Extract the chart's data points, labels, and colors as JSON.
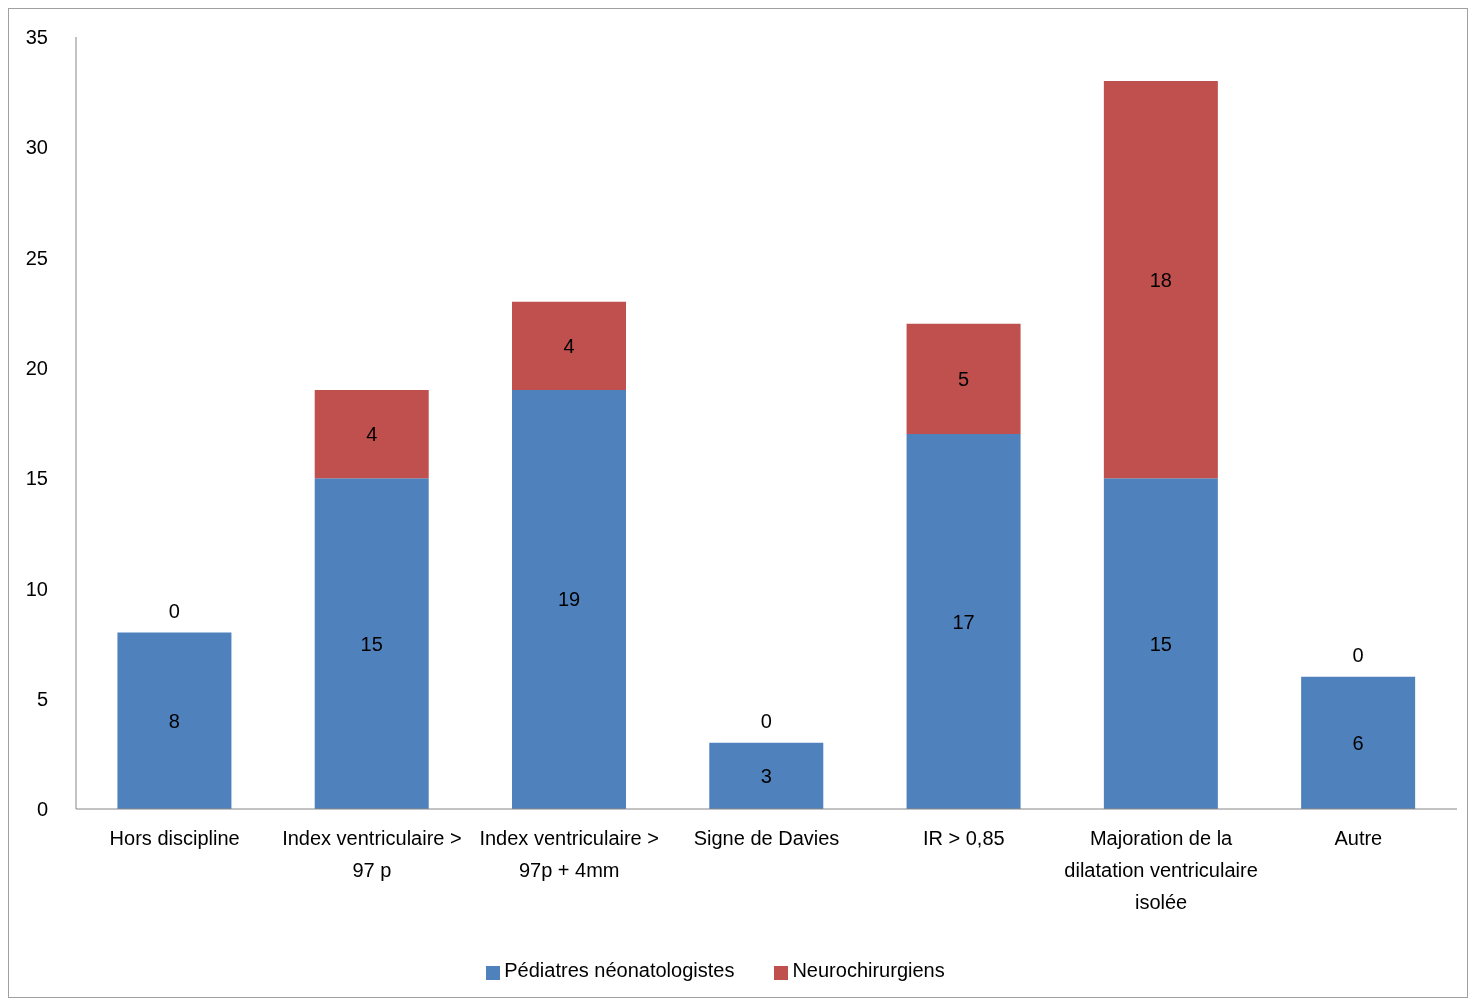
{
  "chart_data": {
    "type": "bar",
    "stacked": true,
    "categories": [
      "Hors discipline",
      "Index ventriculaire > 97 p",
      "Index ventriculaire > 97p + 4mm",
      "Signe de Davies",
      "IR > 0,85",
      "Majoration de la dilatation ventriculaire isolée",
      "Autre"
    ],
    "series": [
      {
        "name": "Pédiatres néonatologistes",
        "color": "#4f81bd",
        "values": [
          8,
          15,
          19,
          3,
          17,
          15,
          6
        ]
      },
      {
        "name": "Neurochirurgiens",
        "color": "#c0504d",
        "values": [
          0,
          4,
          4,
          0,
          5,
          18,
          0
        ]
      }
    ],
    "ylim": [
      0,
      35
    ],
    "yticks": [
      0,
      5,
      10,
      15,
      20,
      25,
      30,
      35
    ],
    "legend": "bottom",
    "data_labels": true
  }
}
